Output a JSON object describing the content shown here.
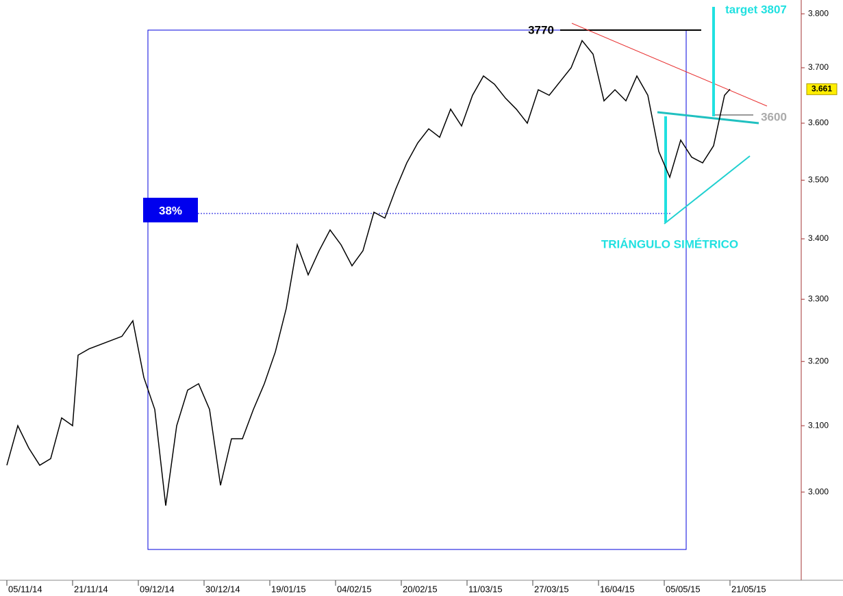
{
  "chart_data": {
    "type": "line",
    "x": [
      0,
      2,
      4,
      6,
      8,
      10,
      12,
      13,
      15,
      18,
      21,
      23,
      25,
      27,
      29,
      31,
      33,
      35,
      37,
      39,
      41,
      43,
      45,
      47,
      49,
      51,
      53,
      55,
      57,
      59,
      61,
      63,
      65,
      67,
      69,
      71,
      73,
      75,
      77,
      79,
      81,
      83,
      85,
      87,
      89,
      91,
      93,
      95,
      97,
      99,
      101,
      103,
      105,
      107,
      109,
      111,
      113,
      115,
      117,
      119,
      121,
      123,
      125,
      127,
      129,
      131,
      132
    ],
    "series": [
      {
        "color": "#000000",
        "values": [
          3040,
          3100,
          3066,
          3040,
          3050,
          3112,
          3100,
          3210,
          3220,
          3230,
          3240,
          3265,
          3175,
          3125,
          2980,
          3100,
          3155,
          3165,
          3125,
          3010,
          3080,
          3080,
          3125,
          3165,
          3215,
          3285,
          3390,
          3340,
          3380,
          3415,
          3390,
          3355,
          3380,
          3445,
          3435,
          3485,
          3530,
          3565,
          3590,
          3575,
          3625,
          3595,
          3650,
          3685,
          3670,
          3645,
          3625,
          3600,
          3660,
          3650,
          3675,
          3700,
          3750,
          3725,
          3640,
          3660,
          3640,
          3685,
          3650,
          3550,
          3505,
          3570,
          3540,
          3530,
          3560,
          3650,
          3661
        ]
      }
    ],
    "xlim": [
      -1.25,
      145
    ],
    "xticks": [
      {
        "value": 0,
        "label": "05/11/14"
      },
      {
        "value": 12,
        "label": "21/11/14"
      },
      {
        "value": 24,
        "label": "09/12/14"
      },
      {
        "value": 36,
        "label": "30/12/14"
      },
      {
        "value": 48,
        "label": "19/01/15"
      },
      {
        "value": 60,
        "label": "04/02/15"
      },
      {
        "value": 72,
        "label": "20/02/15"
      },
      {
        "value": 84,
        "label": "11/03/15"
      },
      {
        "value": 96,
        "label": "27/03/15"
      },
      {
        "value": 108,
        "label": "16/04/15"
      },
      {
        "value": 120,
        "label": "05/05/15"
      },
      {
        "value": 132,
        "label": "21/05/15"
      }
    ],
    "ylim": [
      2872,
      3826
    ],
    "log_scale": true,
    "yticks": [
      {
        "value": 3000,
        "label": "3.000"
      },
      {
        "value": 3100,
        "label": "3.100"
      },
      {
        "value": 3200,
        "label": "3.200"
      },
      {
        "value": 3300,
        "label": "3.300"
      },
      {
        "value": 3400,
        "label": "3.400"
      },
      {
        "value": 3500,
        "label": "3.500"
      },
      {
        "value": 3600,
        "label": "3.600"
      },
      {
        "value": 3700,
        "label": "3.700"
      },
      {
        "value": 3800,
        "label": "3.800"
      }
    ],
    "last_price": {
      "value": 3661,
      "label": "3.661"
    },
    "annotations": [
      "3770",
      "target 3807",
      "3600",
      "38%",
      "TRIÁNGULO SIMÉTRICO"
    ]
  }
}
